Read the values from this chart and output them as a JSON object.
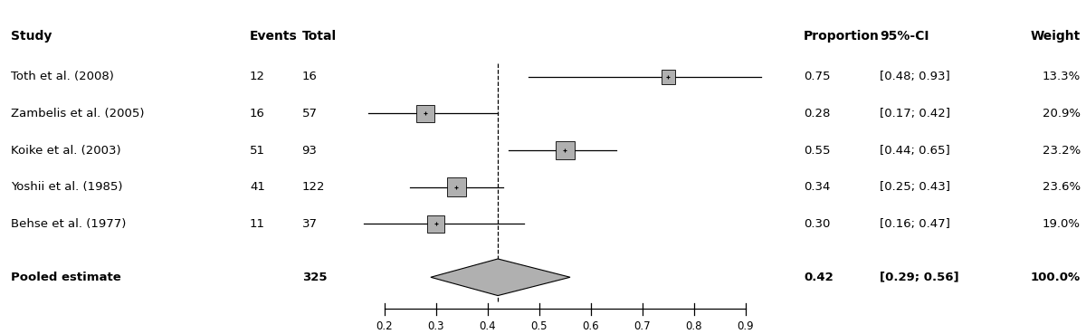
{
  "studies": [
    {
      "name": "Toth et al. (2008)",
      "events": 12,
      "total": 16,
      "prop": 0.75,
      "ci_low": 0.48,
      "ci_high": 0.93,
      "weight": "13.3%"
    },
    {
      "name": "Zambelis et al. (2005)",
      "events": 16,
      "total": 57,
      "prop": 0.28,
      "ci_low": 0.17,
      "ci_high": 0.42,
      "weight": "20.9%"
    },
    {
      "name": "Koike et al. (2003)",
      "events": 51,
      "total": 93,
      "prop": 0.55,
      "ci_low": 0.44,
      "ci_high": 0.65,
      "weight": "23.2%"
    },
    {
      "name": "Yoshii et al. (1985)",
      "events": 41,
      "total": 122,
      "prop": 0.34,
      "ci_low": 0.25,
      "ci_high": 0.43,
      "weight": "23.6%"
    },
    {
      "name": "Behse et al. (1977)",
      "events": 11,
      "total": 37,
      "prop": 0.3,
      "ci_low": 0.16,
      "ci_high": 0.47,
      "weight": "19.0%"
    }
  ],
  "pooled": {
    "total": 325,
    "prop": 0.42,
    "ci_low": 0.29,
    "ci_high": 0.56,
    "weight": "100.0%"
  },
  "x_min": 0.15,
  "x_max": 0.97,
  "x_ticks": [
    0.2,
    0.3,
    0.4,
    0.5,
    0.6,
    0.7,
    0.8,
    0.9
  ],
  "dashed_line_x": 0.42,
  "square_sizes": [
    13.3,
    20.9,
    23.2,
    23.6,
    19.0
  ],
  "bg_color": "#ffffff",
  "square_color": "#b0b0b0",
  "line_color": "#000000",
  "diamond_color": "#b0b0b0",
  "text_fontsize": 9.5,
  "header_fontsize": 10,
  "fig_width": 12.0,
  "fig_height": 3.69,
  "dpi": 100
}
